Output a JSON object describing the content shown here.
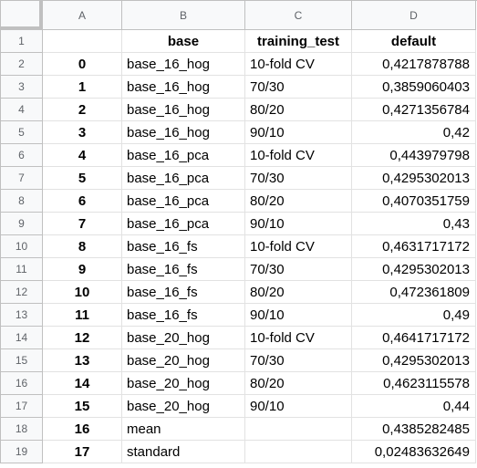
{
  "column_headers": [
    "A",
    "B",
    "C",
    "D"
  ],
  "header_row": {
    "row_number": "1",
    "a": "",
    "b": "base",
    "c": "training_test",
    "d": "default"
  },
  "rows": [
    {
      "row_number": "2",
      "a": "0",
      "b": "base_16_hog",
      "c": "10-fold CV",
      "d": "0,4217878788"
    },
    {
      "row_number": "3",
      "a": "1",
      "b": "base_16_hog",
      "c": "70/30",
      "d": "0,3859060403"
    },
    {
      "row_number": "4",
      "a": "2",
      "b": "base_16_hog",
      "c": "80/20",
      "d": "0,4271356784"
    },
    {
      "row_number": "5",
      "a": "3",
      "b": "base_16_hog",
      "c": "90/10",
      "d": "0,42"
    },
    {
      "row_number": "6",
      "a": "4",
      "b": "base_16_pca",
      "c": "10-fold CV",
      "d": "0,443979798"
    },
    {
      "row_number": "7",
      "a": "5",
      "b": "base_16_pca",
      "c": "70/30",
      "d": "0,4295302013"
    },
    {
      "row_number": "8",
      "a": "6",
      "b": "base_16_pca",
      "c": "80/20",
      "d": "0,4070351759"
    },
    {
      "row_number": "9",
      "a": "7",
      "b": "base_16_pca",
      "c": "90/10",
      "d": "0,43"
    },
    {
      "row_number": "10",
      "a": "8",
      "b": "base_16_fs",
      "c": "10-fold CV",
      "d": "0,4631717172"
    },
    {
      "row_number": "11",
      "a": "9",
      "b": "base_16_fs",
      "c": "70/30",
      "d": "0,4295302013"
    },
    {
      "row_number": "12",
      "a": "10",
      "b": "base_16_fs",
      "c": "80/20",
      "d": "0,472361809"
    },
    {
      "row_number": "13",
      "a": "11",
      "b": "base_16_fs",
      "c": "90/10",
      "d": "0,49"
    },
    {
      "row_number": "14",
      "a": "12",
      "b": "base_20_hog",
      "c": "10-fold CV",
      "d": "0,4641717172"
    },
    {
      "row_number": "15",
      "a": "13",
      "b": "base_20_hog",
      "c": "70/30",
      "d": "0,4295302013"
    },
    {
      "row_number": "16",
      "a": "14",
      "b": "base_20_hog",
      "c": "80/20",
      "d": "0,4623115578"
    },
    {
      "row_number": "17",
      "a": "15",
      "b": "base_20_hog",
      "c": "90/10",
      "d": "0,44"
    },
    {
      "row_number": "18",
      "a": "16",
      "b": "mean",
      "c": "",
      "d": "0,4385282485"
    },
    {
      "row_number": "19",
      "a": "17",
      "b": "standard",
      "c": "",
      "d": "0,02483632649"
    }
  ]
}
